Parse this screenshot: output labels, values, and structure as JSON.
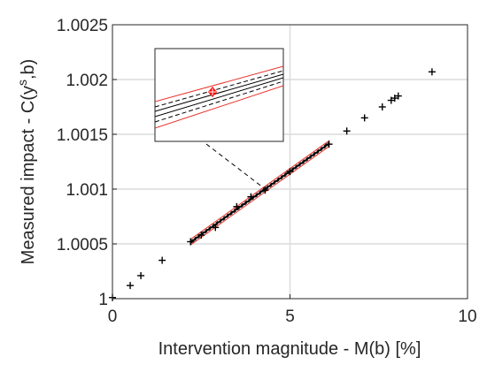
{
  "chart_data": {
    "type": "scatter",
    "xlabel": "Intervention magnitude - M(b) [%]",
    "ylabel": "Measured impact - C(y",
    "ylabel_sup": "s",
    "ylabel_tail": ",b)",
    "xlim": [
      0,
      10
    ],
    "ylim": [
      1,
      1.0025
    ],
    "x_ticks": [
      0,
      5,
      10
    ],
    "x_tick_labels": [
      "0",
      "5",
      "10"
    ],
    "y_ticks": [
      1,
      1.0005,
      1.001,
      1.0015,
      1.002,
      1.0025
    ],
    "y_tick_labels": [
      "1",
      "1.0005",
      "1.001",
      "1.0015",
      "1.002",
      "1.0025"
    ],
    "grid": true,
    "series": [
      {
        "marker": "+",
        "color": "#000000",
        "x": [
          0.0,
          0.5,
          0.8,
          1.4,
          2.2,
          2.5,
          2.9,
          3.5,
          3.9,
          4.3,
          5.0,
          6.1,
          6.6,
          7.1,
          7.6,
          7.85,
          7.95,
          8.05,
          9.0
        ],
        "y": [
          1.00001,
          1.00012,
          1.00021,
          1.00035,
          1.00052,
          1.00058,
          1.00065,
          1.00084,
          1.00093,
          1.00099,
          1.00116,
          1.00141,
          1.00153,
          1.00165,
          1.00175,
          1.00181,
          1.00183,
          1.00185,
          1.00207
        ]
      }
    ],
    "bands": {
      "x_range": [
        2.2,
        6.1
      ],
      "center_color": "#000000",
      "dashed_color": "#000000",
      "outer_color": "#e8322b"
    },
    "inset": {
      "highlight_color": "#ff0000",
      "highlight_marker": "diamond",
      "connector": "dashed"
    }
  }
}
